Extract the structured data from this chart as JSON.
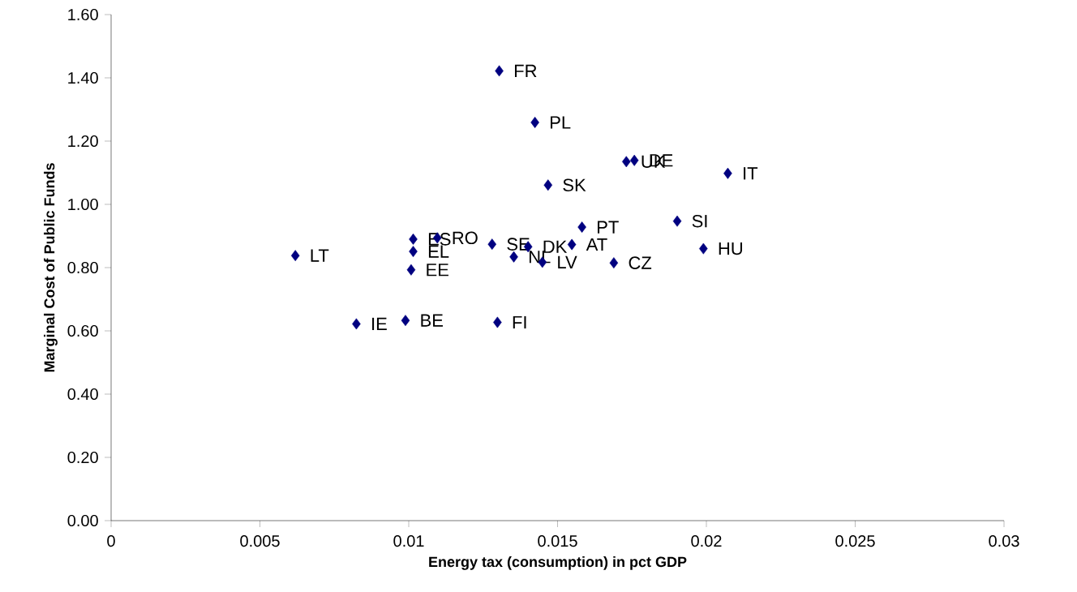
{
  "chart_data": {
    "type": "scatter",
    "xlabel": "Energy tax (consumption) in pct GDP",
    "ylabel": "Marginal Cost of Public Funds",
    "x": [
      0.01304,
      0.01424,
      0.01731,
      0.01758,
      0.01468,
      0.02072,
      0.01902,
      0.01582,
      0.0199,
      0.00619,
      0.01015,
      0.01096,
      0.01015,
      0.01008,
      0.0128,
      0.01401,
      0.01353,
      0.01449,
      0.01548,
      0.01689,
      0.00824,
      0.00989,
      0.01298
    ],
    "series": [
      {
        "color": "#000080",
        "values": [
          1.422,
          1.259,
          1.135,
          1.139,
          1.061,
          1.098,
          0.947,
          0.928,
          0.86,
          0.838,
          0.89,
          0.894,
          0.851,
          0.793,
          0.874,
          0.866,
          0.834,
          0.817,
          0.873,
          0.815,
          0.622,
          0.633,
          0.627
        ]
      }
    ],
    "annotations": [
      {
        "text": "FR",
        "x": 0.01304,
        "y": 1.422
      },
      {
        "text": "PL",
        "x": 0.01424,
        "y": 1.259
      },
      {
        "text": "UK",
        "x": 0.01731,
        "y": 1.135
      },
      {
        "text": "DE",
        "x": 0.01758,
        "y": 1.139
      },
      {
        "text": "SK",
        "x": 0.01468,
        "y": 1.061
      },
      {
        "text": "IT",
        "x": 0.02072,
        "y": 1.098
      },
      {
        "text": "SI",
        "x": 0.01902,
        "y": 0.947
      },
      {
        "text": "PT",
        "x": 0.01582,
        "y": 0.928
      },
      {
        "text": "HU",
        "x": 0.0199,
        "y": 0.86
      },
      {
        "text": "LT",
        "x": 0.00619,
        "y": 0.838
      },
      {
        "text": "ES",
        "x": 0.01015,
        "y": 0.89
      },
      {
        "text": "RO",
        "x": 0.01096,
        "y": 0.894
      },
      {
        "text": "EL",
        "x": 0.01015,
        "y": 0.851
      },
      {
        "text": "EE",
        "x": 0.01008,
        "y": 0.793
      },
      {
        "text": "SE",
        "x": 0.0128,
        "y": 0.874
      },
      {
        "text": "DK",
        "x": 0.01401,
        "y": 0.866
      },
      {
        "text": "NL",
        "x": 0.01353,
        "y": 0.834
      },
      {
        "text": "LV",
        "x": 0.01449,
        "y": 0.817
      },
      {
        "text": "AT",
        "x": 0.01548,
        "y": 0.873
      },
      {
        "text": "CZ",
        "x": 0.01689,
        "y": 0.815
      },
      {
        "text": "IE",
        "x": 0.00824,
        "y": 0.622
      },
      {
        "text": "BE",
        "x": 0.00989,
        "y": 0.633
      },
      {
        "text": "FI",
        "x": 0.01298,
        "y": 0.627
      }
    ],
    "xlim": [
      0,
      0.03
    ],
    "xticks": [
      0,
      0.005,
      0.01,
      0.015,
      0.02,
      0.025,
      0.03
    ],
    "ylim": [
      0,
      1.6
    ],
    "yticks": [
      {
        "value": 0,
        "label": "0.00"
      },
      {
        "value": 0.2,
        "label": "0.20"
      },
      {
        "value": 0.4,
        "label": "0.40"
      },
      {
        "value": 0.6,
        "label": "0.60"
      },
      {
        "value": 0.8,
        "label": "0.80"
      },
      {
        "value": 1.0,
        "label": "1.00"
      },
      {
        "value": 1.2,
        "label": "1.20"
      },
      {
        "value": 1.4,
        "label": "1.40"
      },
      {
        "value": 1.6,
        "label": "1.60"
      }
    ],
    "marker": "diamond"
  }
}
